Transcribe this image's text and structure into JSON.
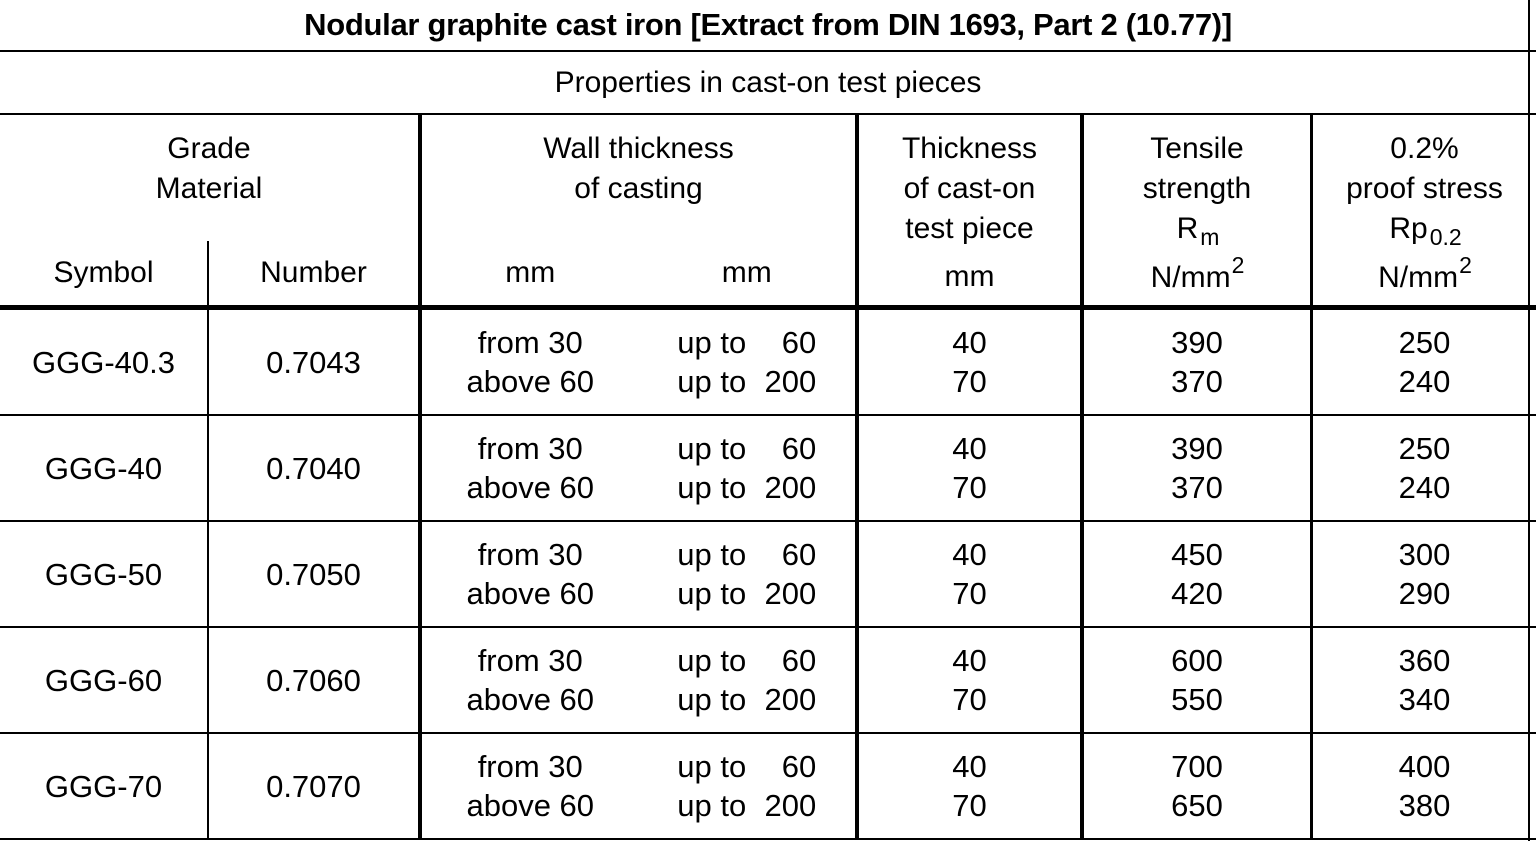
{
  "title": "Nodular graphite cast iron [Extract from DIN 1693, Part 2 (10.77)]",
  "subtitle": "Properties in cast-on test pieces",
  "header": {
    "grade": {
      "line1": "Grade",
      "line2": "Material",
      "symbol": "Symbol",
      "number": "Number"
    },
    "wall": {
      "line1": "Wall thickness",
      "line2": "of casting",
      "unit_left": "mm",
      "unit_right": "mm"
    },
    "test_piece": {
      "line1": "Thickness",
      "line2": "of cast-on",
      "line3": "test piece",
      "unit": "mm"
    },
    "tensile": {
      "line1": "Tensile",
      "line2": "strength",
      "sym_base": "R",
      "sym_sub": "m",
      "unit_base": "N/mm",
      "unit_sup": "2"
    },
    "proof": {
      "line1": "0.2%",
      "line2": "proof stress",
      "sym_base": "Rp",
      "sym_sub": "0.2",
      "unit_base": "N/mm",
      "unit_sup": "2"
    }
  },
  "rows": [
    {
      "symbol": "GGG-40.3",
      "number": "0.7043",
      "wall_from_1": "from 30",
      "wall_from_2": "above 60",
      "wall_to_label_1": "up to",
      "wall_to_value_1": "60",
      "wall_to_label_2": "up to",
      "wall_to_value_2": "200",
      "test_1": "40",
      "test_2": "70",
      "tensile_1": "390",
      "tensile_2": "370",
      "proof_1": "250",
      "proof_2": "240"
    },
    {
      "symbol": "GGG-40",
      "number": "0.7040",
      "wall_from_1": "from 30",
      "wall_from_2": "above 60",
      "wall_to_label_1": "up to",
      "wall_to_value_1": "60",
      "wall_to_label_2": "up to",
      "wall_to_value_2": "200",
      "test_1": "40",
      "test_2": "70",
      "tensile_1": "390",
      "tensile_2": "370",
      "proof_1": "250",
      "proof_2": "240"
    },
    {
      "symbol": "GGG-50",
      "number": "0.7050",
      "wall_from_1": "from 30",
      "wall_from_2": "above 60",
      "wall_to_label_1": "up to",
      "wall_to_value_1": "60",
      "wall_to_label_2": "up to",
      "wall_to_value_2": "200",
      "test_1": "40",
      "test_2": "70",
      "tensile_1": "450",
      "tensile_2": "420",
      "proof_1": "300",
      "proof_2": "290"
    },
    {
      "symbol": "GGG-60",
      "number": "0.7060",
      "wall_from_1": "from 30",
      "wall_from_2": "above 60",
      "wall_to_label_1": "up to",
      "wall_to_value_1": "60",
      "wall_to_label_2": "up to",
      "wall_to_value_2": "200",
      "test_1": "40",
      "test_2": "70",
      "tensile_1": "600",
      "tensile_2": "550",
      "proof_1": "360",
      "proof_2": "340"
    },
    {
      "symbol": "GGG-70",
      "number": "0.7070",
      "wall_from_1": "from 30",
      "wall_from_2": "above 60",
      "wall_to_label_1": "up to",
      "wall_to_value_1": "60",
      "wall_to_label_2": "up to",
      "wall_to_value_2": "200",
      "test_1": "40",
      "test_2": "70",
      "tensile_1": "700",
      "tensile_2": "650",
      "proof_1": "400",
      "proof_2": "380"
    }
  ],
  "colors": {
    "background": "#ffffff",
    "text": "#000000",
    "border": "#000000"
  }
}
